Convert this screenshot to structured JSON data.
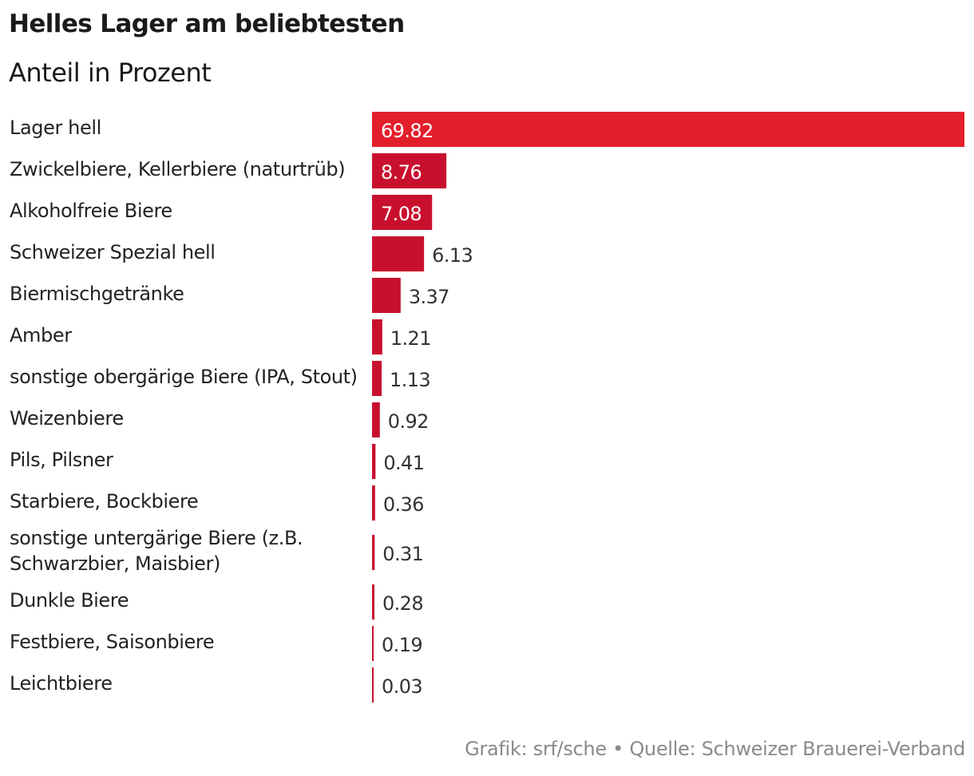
{
  "chart_data": {
    "type": "bar",
    "orientation": "horizontal",
    "title": "Helles Lager am beliebtesten",
    "subtitle": "Anteil in Prozent",
    "categories": [
      [
        "Lager hell"
      ],
      [
        "Zwickelbiere, Kellerbiere (naturtrüb)"
      ],
      [
        "Alkoholfreie Biere"
      ],
      [
        "Schweizer Spezial hell"
      ],
      [
        "Biermischgetränke"
      ],
      [
        "Amber"
      ],
      [
        "sonstige obergärige Biere (IPA, Stout)"
      ],
      [
        "Weizenbiere"
      ],
      [
        "Pils, Pilsner"
      ],
      [
        "Starbiere, Bockbiere"
      ],
      [
        "sonstige untergärige Biere (z.B.",
        "Schwarzbier, Maisbier)"
      ],
      [
        "Dunkle Biere"
      ],
      [
        "Festbiere, Saisonbiere"
      ],
      [
        "Leichtbiere"
      ]
    ],
    "values": [
      69.82,
      8.76,
      7.08,
      6.13,
      3.37,
      1.21,
      1.13,
      0.92,
      0.41,
      0.36,
      0.31,
      0.28,
      0.19,
      0.03
    ],
    "value_labels": [
      "69.82",
      "8.76",
      "7.08",
      "6.13",
      "3.37",
      "1.21",
      "1.13",
      "0.92",
      "0.41",
      "0.36",
      "0.31",
      "0.28",
      "0.19",
      "0.03"
    ],
    "xlim": [
      0,
      69.82
    ],
    "grid": false,
    "legend": "none",
    "colors": {
      "highlight": "#e31f2b",
      "bar": "#c8102e",
      "label_inside": "#ffffff",
      "label_outside": "#333333"
    }
  },
  "footer": "Grafik: srf/sche • Quelle: Schweizer Brauerei-Verband"
}
